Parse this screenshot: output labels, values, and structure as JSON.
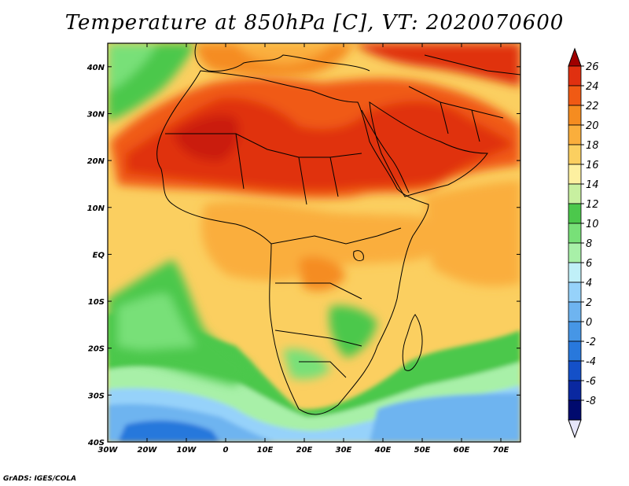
{
  "title": "Temperature at 850hPa [C], VT: 2020070600",
  "credit": "GrADS: IGES/COLA",
  "map": {
    "lon_range": [
      -30,
      75
    ],
    "lat_range": [
      -40,
      45
    ],
    "x_ticks": [
      "30W",
      "20W",
      "10W",
      "0",
      "10E",
      "20E",
      "30E",
      "40E",
      "50E",
      "60E",
      "70E"
    ],
    "y_ticks": [
      "40N",
      "30N",
      "20N",
      "10N",
      "EQ",
      "10S",
      "20S",
      "30S",
      "40S"
    ]
  },
  "colorbar": {
    "labels": [
      "26",
      "24",
      "22",
      "20",
      "18",
      "16",
      "14",
      "12",
      "10",
      "8",
      "6",
      "4",
      "2",
      "0",
      "-2",
      "-4",
      "-6",
      "-8"
    ],
    "colors": [
      "#a00000",
      "#e03010",
      "#f05a14",
      "#f58c20",
      "#faae3c",
      "#fbcf60",
      "#fdf0a0",
      "#c8f0a0",
      "#4cc84c",
      "#78e078",
      "#a8f0a8",
      "#c0f0f8",
      "#96d2fa",
      "#6eb4f0",
      "#4696e6",
      "#2878dc",
      "#1450c8",
      "#0a28a0",
      "#000a6e",
      "#e6e6fa"
    ]
  }
}
